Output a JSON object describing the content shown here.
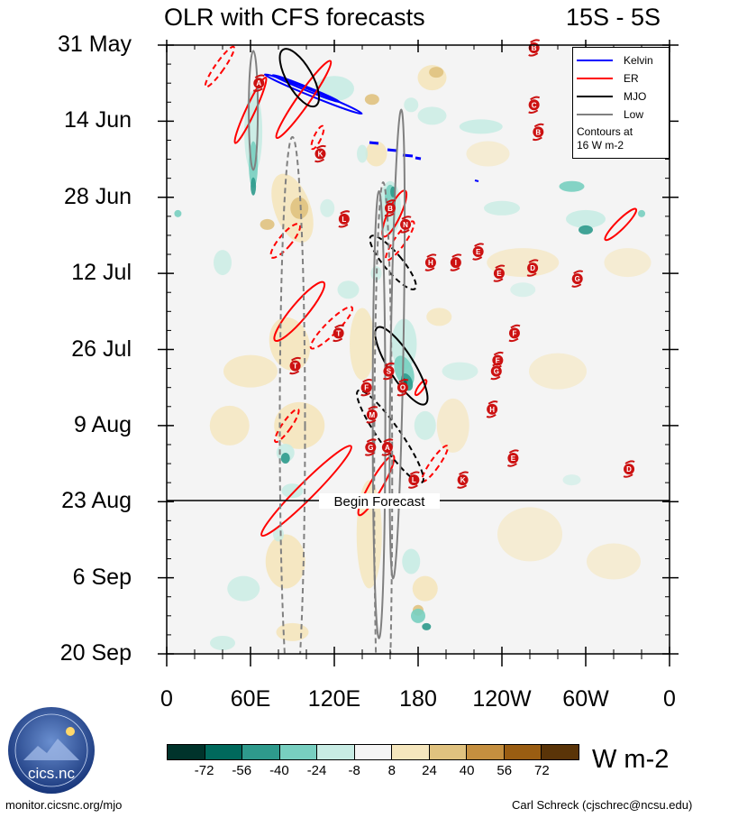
{
  "title": {
    "left": "OLR with CFS forecasts",
    "right": "15S - 5S"
  },
  "chart_data": {
    "type": "heatmap",
    "title": "OLR with CFS forecasts",
    "subtitle": "15S - 5S",
    "xlabel": "longitude",
    "ylabel": "date (time increasing downward)",
    "x_ticks": [
      "0",
      "60E",
      "120E",
      "180",
      "120W",
      "60W",
      "0"
    ],
    "x_range_deg_east": [
      0,
      360
    ],
    "y_ticks": [
      "31 May",
      "14 Jun",
      "28 Jun",
      "12 Jul",
      "26 Jul",
      "9 Aug",
      "23 Aug",
      "6 Sep",
      "20 Sep"
    ],
    "y_range_days": [
      0,
      112
    ],
    "forecast_marker": {
      "label": "Begin Forecast",
      "day": 84
    },
    "colorbar": {
      "units": "W m-2",
      "levels": [
        -72,
        -56,
        -40,
        -24,
        -8,
        8,
        24,
        40,
        56,
        72
      ],
      "colors": [
        "#00332b",
        "#00695c",
        "#2e9a8c",
        "#78cfc0",
        "#c8ece4",
        "#f4f4f4",
        "#f5e6bd",
        "#e0c27f",
        "#c58f3f",
        "#9a5d12",
        "#5a3408"
      ]
    },
    "legend": {
      "entries": [
        {
          "name": "Kelvin",
          "color": "#0000ff"
        },
        {
          "name": "ER",
          "color": "#ff0000"
        },
        {
          "name": "MJO",
          "color": "#000000"
        },
        {
          "name": "Low",
          "color": "#808080"
        }
      ],
      "note": [
        "Contours at",
        "16 W m-2"
      ],
      "placement": "top-right"
    },
    "storms": [
      {
        "id": "A",
        "lon": 66,
        "day": 7
      },
      {
        "id": "B",
        "lon": 263,
        "day": 0.5
      },
      {
        "id": "C",
        "lon": 263,
        "day": 11
      },
      {
        "id": "B",
        "lon": 266,
        "day": 16
      },
      {
        "id": "K",
        "lon": 110,
        "day": 20
      },
      {
        "id": "L",
        "lon": 127,
        "day": 32
      },
      {
        "id": "B",
        "lon": 160,
        "day": 30
      },
      {
        "id": "N",
        "lon": 171,
        "day": 33
      },
      {
        "id": "E",
        "lon": 223,
        "day": 38
      },
      {
        "id": "H",
        "lon": 189,
        "day": 40
      },
      {
        "id": "I",
        "lon": 207,
        "day": 40
      },
      {
        "id": "E",
        "lon": 238,
        "day": 42
      },
      {
        "id": "D",
        "lon": 262,
        "day": 41
      },
      {
        "id": "G",
        "lon": 294,
        "day": 43
      },
      {
        "id": "T",
        "lon": 123,
        "day": 53
      },
      {
        "id": "T",
        "lon": 92,
        "day": 59
      },
      {
        "id": "F",
        "lon": 249,
        "day": 53
      },
      {
        "id": "E",
        "lon": 237,
        "day": 58
      },
      {
        "id": "G",
        "lon": 236,
        "day": 60
      },
      {
        "id": "S",
        "lon": 159,
        "day": 60
      },
      {
        "id": "F",
        "lon": 143,
        "day": 63
      },
      {
        "id": "O",
        "lon": 169,
        "day": 63
      },
      {
        "id": "H",
        "lon": 233,
        "day": 67
      },
      {
        "id": "M",
        "lon": 147,
        "day": 68
      },
      {
        "id": "G",
        "lon": 146,
        "day": 74
      },
      {
        "id": "A",
        "lon": 158,
        "day": 74
      },
      {
        "id": "E",
        "lon": 248,
        "day": 76
      },
      {
        "id": "L",
        "lon": 177,
        "day": 80
      },
      {
        "id": "K",
        "lon": 212,
        "day": 80
      },
      {
        "id": "D",
        "lon": 331,
        "day": 78
      }
    ]
  },
  "xticks": [
    "0",
    "60E",
    "120E",
    "180",
    "120W",
    "60W",
    "0"
  ],
  "yticks": [
    "31 May",
    "14 Jun",
    "28 Jun",
    "12 Jul",
    "26 Jul",
    "9 Aug",
    "23 Aug",
    "6 Sep",
    "20 Sep"
  ],
  "colorbar_labels": [
    "-72",
    "-56",
    "-40",
    "-24",
    "-8",
    "8",
    "24",
    "40",
    "56",
    "72"
  ],
  "units": "W m-2",
  "legend": {
    "kelvin": "Kelvin",
    "er": "ER",
    "mjo": "MJO",
    "low": "Low",
    "note_line1": "Contours at",
    "note_line2": "16 W m-2"
  },
  "begin_forecast": "Begin Forecast",
  "footer": {
    "left": "monitor.cicsnc.org/mjo",
    "right": "Carl Schreck (cjschrec@ncsu.edu)"
  },
  "logo": {
    "text": "cics.nc",
    "ring": "Cooperative Institute for Climate and Satellites"
  },
  "colors": {
    "kelvin": "#0000ff",
    "er": "#ff0000",
    "mjo": "#000000",
    "low": "#808080",
    "storm": "#cc1111"
  }
}
